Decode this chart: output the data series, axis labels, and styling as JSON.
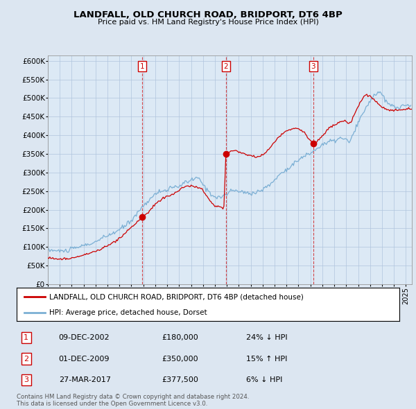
{
  "title": "LANDFALL, OLD CHURCH ROAD, BRIDPORT, DT6 4BP",
  "subtitle": "Price paid vs. HM Land Registry's House Price Index (HPI)",
  "ylabel_ticks": [
    "£0",
    "£50K",
    "£100K",
    "£150K",
    "£200K",
    "£250K",
    "£300K",
    "£350K",
    "£400K",
    "£450K",
    "£500K",
    "£550K",
    "£600K"
  ],
  "ytick_values": [
    0,
    50000,
    100000,
    150000,
    200000,
    250000,
    300000,
    350000,
    400000,
    450000,
    500000,
    550000,
    600000
  ],
  "xlim_start": 1995.0,
  "xlim_end": 2025.5,
  "ylim": [
    0,
    615000
  ],
  "legend_property": "LANDFALL, OLD CHURCH ROAD, BRIDPORT, DT6 4BP (detached house)",
  "legend_hpi": "HPI: Average price, detached house, Dorset",
  "transactions": [
    {
      "num": 1,
      "date": "09-DEC-2002",
      "price": 180000,
      "pct": "24%",
      "dir": "↓",
      "x": 2002.92
    },
    {
      "num": 2,
      "date": "01-DEC-2009",
      "price": 350000,
      "pct": "15%",
      "dir": "↑",
      "x": 2009.92
    },
    {
      "num": 3,
      "date": "27-MAR-2017",
      "price": 377500,
      "pct": "6%",
      "dir": "↓",
      "x": 2017.23
    }
  ],
  "property_color": "#cc0000",
  "hpi_color": "#7bafd4",
  "background_color": "#dce6f1",
  "plot_bg_color": "#dce9f5",
  "grid_color": "#b0c4de",
  "footer": "Contains HM Land Registry data © Crown copyright and database right 2024.\nThis data is licensed under the Open Government Licence v3.0.",
  "trans_price_1": 180000,
  "trans_price_2": 350000,
  "trans_price_3": 377500
}
